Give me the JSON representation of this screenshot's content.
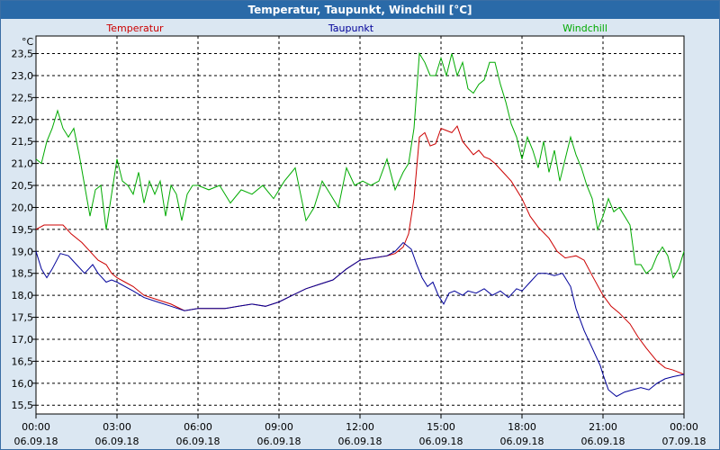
{
  "window": {
    "title": "Temperatur, Taupunkt, Windchill [°C]"
  },
  "colors": {
    "background": "#dbe7f2",
    "plot_bg": "#ffffff",
    "titlebar": "#2a6aa8",
    "grid": "#000000"
  },
  "chart_data": {
    "type": "line",
    "title": "Temperatur, Taupunkt, Windchill [°C]",
    "ylabel": "°C",
    "xlabel": "",
    "ylim": [
      15.3,
      23.9
    ],
    "xlim": [
      0,
      24
    ],
    "grid": true,
    "legend": "top",
    "y_ticks": [
      15.5,
      16.0,
      16.5,
      17.0,
      17.5,
      18.0,
      18.5,
      19.0,
      19.5,
      20.0,
      20.5,
      21.0,
      21.5,
      22.0,
      22.5,
      23.0,
      23.5
    ],
    "y_tick_labels": [
      "15,5",
      "16,0",
      "16,5",
      "17,0",
      "17,5",
      "18,0",
      "18,5",
      "19,0",
      "19,5",
      "20,0",
      "20,5",
      "21,0",
      "21,5",
      "22,0",
      "22,5",
      "23,0",
      "23,5"
    ],
    "x_ticks": [
      0,
      3,
      6,
      9,
      12,
      15,
      18,
      21,
      24
    ],
    "x_tick_times": [
      "00:00",
      "03:00",
      "06:00",
      "09:00",
      "12:00",
      "15:00",
      "18:00",
      "21:00",
      "00:00"
    ],
    "x_tick_dates": [
      "06.09.18",
      "06.09.18",
      "06.09.18",
      "06.09.18",
      "06.09.18",
      "06.09.18",
      "06.09.18",
      "06.09.18",
      "07.09.18"
    ],
    "series": [
      {
        "name": "Temperatur",
        "color": "#cc0000",
        "x": [
          0,
          0.3,
          0.7,
          1.0,
          1.3,
          1.7,
          2.0,
          2.3,
          2.6,
          2.8,
          3.0,
          3.3,
          3.6,
          4.0,
          4.5,
          5.0,
          5.5,
          6.0,
          6.5,
          7.0,
          7.5,
          8.0,
          8.5,
          9.0,
          9.5,
          10.0,
          10.5,
          11.0,
          11.5,
          12.0,
          12.5,
          13.0,
          13.3,
          13.6,
          13.8,
          14.0,
          14.2,
          14.4,
          14.6,
          14.8,
          15.0,
          15.2,
          15.4,
          15.6,
          15.8,
          16.0,
          16.2,
          16.4,
          16.6,
          16.8,
          17.0,
          17.3,
          17.6,
          18.0,
          18.3,
          18.6,
          19.0,
          19.3,
          19.6,
          20.0,
          20.3,
          20.6,
          21.0,
          21.3,
          21.6,
          22.0,
          22.3,
          22.6,
          23.0,
          23.3,
          23.6,
          24.0
        ],
        "values": [
          19.5,
          19.6,
          19.6,
          19.6,
          19.4,
          19.2,
          19.0,
          18.8,
          18.7,
          18.5,
          18.4,
          18.3,
          18.2,
          18.0,
          17.9,
          17.8,
          17.65,
          17.7,
          17.7,
          17.7,
          17.75,
          17.8,
          17.75,
          17.85,
          18.0,
          18.15,
          18.25,
          18.35,
          18.6,
          18.8,
          18.85,
          18.9,
          18.95,
          19.1,
          19.4,
          20.2,
          21.6,
          21.7,
          21.4,
          21.45,
          21.8,
          21.75,
          21.7,
          21.85,
          21.5,
          21.35,
          21.2,
          21.3,
          21.15,
          21.1,
          21.0,
          20.8,
          20.6,
          20.2,
          19.8,
          19.55,
          19.3,
          19.0,
          18.85,
          18.9,
          18.8,
          18.45,
          18.0,
          17.75,
          17.6,
          17.35,
          17.05,
          16.8,
          16.5,
          16.35,
          16.3,
          16.2
        ]
      },
      {
        "name": "Taupunkt",
        "color": "#000099",
        "x": [
          0,
          0.2,
          0.4,
          0.6,
          0.9,
          1.2,
          1.5,
          1.8,
          2.1,
          2.3,
          2.6,
          2.8,
          3.0,
          3.3,
          3.6,
          4.0,
          4.5,
          5.0,
          5.5,
          6.0,
          6.5,
          7.0,
          7.5,
          8.0,
          8.5,
          9.0,
          9.5,
          10.0,
          10.5,
          11.0,
          11.5,
          12.0,
          12.5,
          13.0,
          13.3,
          13.6,
          13.9,
          14.1,
          14.3,
          14.5,
          14.7,
          14.9,
          15.1,
          15.3,
          15.5,
          15.8,
          16.0,
          16.3,
          16.6,
          16.9,
          17.2,
          17.5,
          17.8,
          18.0,
          18.3,
          18.6,
          18.9,
          19.2,
          19.5,
          19.8,
          20.0,
          20.3,
          20.6,
          20.9,
          21.0,
          21.2,
          21.5,
          21.8,
          22.1,
          22.4,
          22.7,
          23.0,
          23.3,
          23.6,
          24.0
        ],
        "values": [
          19.0,
          18.6,
          18.4,
          18.6,
          18.95,
          18.9,
          18.7,
          18.5,
          18.7,
          18.5,
          18.3,
          18.35,
          18.3,
          18.2,
          18.1,
          17.95,
          17.85,
          17.75,
          17.65,
          17.7,
          17.7,
          17.7,
          17.75,
          17.8,
          17.75,
          17.85,
          18.0,
          18.15,
          18.25,
          18.35,
          18.6,
          18.8,
          18.85,
          18.9,
          19.0,
          19.2,
          19.05,
          18.7,
          18.4,
          18.2,
          18.3,
          18.0,
          17.8,
          18.05,
          18.1,
          18.0,
          18.1,
          18.05,
          18.15,
          18.0,
          18.1,
          17.95,
          18.15,
          18.1,
          18.3,
          18.5,
          18.5,
          18.45,
          18.5,
          18.2,
          17.7,
          17.2,
          16.8,
          16.4,
          16.2,
          15.85,
          15.7,
          15.8,
          15.85,
          15.9,
          15.85,
          16.0,
          16.1,
          16.15,
          16.2
        ]
      },
      {
        "name": "Windchill",
        "color": "#00aa00",
        "x": [
          0,
          0.2,
          0.4,
          0.6,
          0.8,
          1.0,
          1.2,
          1.4,
          1.6,
          1.8,
          2.0,
          2.2,
          2.4,
          2.6,
          2.8,
          3.0,
          3.2,
          3.4,
          3.6,
          3.8,
          4.0,
          4.2,
          4.4,
          4.6,
          4.8,
          5.0,
          5.2,
          5.4,
          5.6,
          5.8,
          6.0,
          6.4,
          6.8,
          7.2,
          7.6,
          8.0,
          8.4,
          8.8,
          9.2,
          9.6,
          10.0,
          10.3,
          10.6,
          10.9,
          11.2,
          11.5,
          11.8,
          12.1,
          12.4,
          12.7,
          13.0,
          13.3,
          13.6,
          13.8,
          14.0,
          14.2,
          14.4,
          14.6,
          14.8,
          15.0,
          15.2,
          15.4,
          15.6,
          15.8,
          16.0,
          16.2,
          16.4,
          16.6,
          16.8,
          17.0,
          17.2,
          17.4,
          17.6,
          17.8,
          18.0,
          18.2,
          18.4,
          18.6,
          18.8,
          19.0,
          19.2,
          19.4,
          19.6,
          19.8,
          20.0,
          20.2,
          20.4,
          20.6,
          20.8,
          21.0,
          21.2,
          21.4,
          21.6,
          21.8,
          22.0,
          22.2,
          22.4,
          22.6,
          22.8,
          23.0,
          23.2,
          23.4,
          23.6,
          23.8,
          24.0
        ],
        "values": [
          21.1,
          21.0,
          21.5,
          21.8,
          22.2,
          21.8,
          21.6,
          21.8,
          21.2,
          20.5,
          19.8,
          20.4,
          20.5,
          19.5,
          20.3,
          21.1,
          20.6,
          20.5,
          20.3,
          20.8,
          20.1,
          20.6,
          20.3,
          20.6,
          19.8,
          20.5,
          20.3,
          19.7,
          20.3,
          20.5,
          20.5,
          20.4,
          20.5,
          20.1,
          20.4,
          20.3,
          20.5,
          20.2,
          20.6,
          20.9,
          19.7,
          20.0,
          20.6,
          20.3,
          20.0,
          20.9,
          20.5,
          20.6,
          20.5,
          20.6,
          21.1,
          20.4,
          20.8,
          21.0,
          21.8,
          23.5,
          23.3,
          23.0,
          23.0,
          23.4,
          23.0,
          23.5,
          23.0,
          23.3,
          22.7,
          22.6,
          22.8,
          22.9,
          23.3,
          23.3,
          22.8,
          22.4,
          21.9,
          21.6,
          21.1,
          21.6,
          21.3,
          20.9,
          21.5,
          20.8,
          21.3,
          20.6,
          21.1,
          21.6,
          21.2,
          20.9,
          20.5,
          20.2,
          19.5,
          19.8,
          20.2,
          19.9,
          20.0,
          19.8,
          19.6,
          18.7,
          18.7,
          18.5,
          18.6,
          18.9,
          19.1,
          18.9,
          18.4,
          18.6,
          19.0
        ]
      }
    ]
  }
}
